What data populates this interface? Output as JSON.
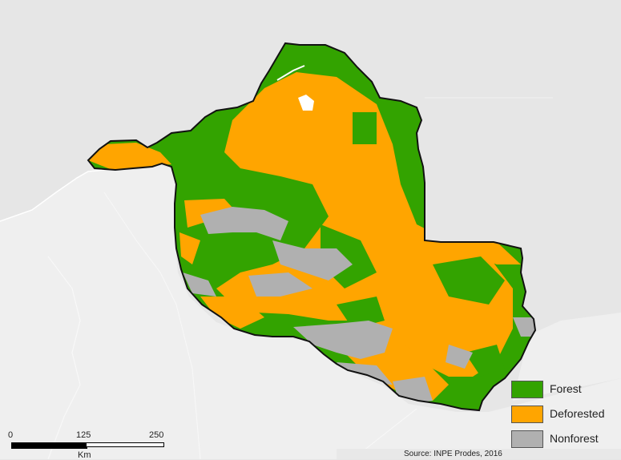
{
  "colors": {
    "background": "#e6e6e6",
    "neighbor_land": "#efefef",
    "border_lines": "#ffffff",
    "forest": "#33a300",
    "deforested": "#ffa500",
    "nonforest": "#b0b0b0",
    "water": "#ffffff",
    "outline": "#111111"
  },
  "legend": {
    "items": [
      {
        "label": "Forest",
        "color": "#33a300"
      },
      {
        "label": "Deforested",
        "color": "#ffa500"
      },
      {
        "label": "Nonforest",
        "color": "#b0b0b0"
      }
    ]
  },
  "scalebar": {
    "ticks": [
      "0",
      "125",
      "250"
    ],
    "unit": "Km"
  },
  "source": "Source: INPE Prodes, 2016"
}
